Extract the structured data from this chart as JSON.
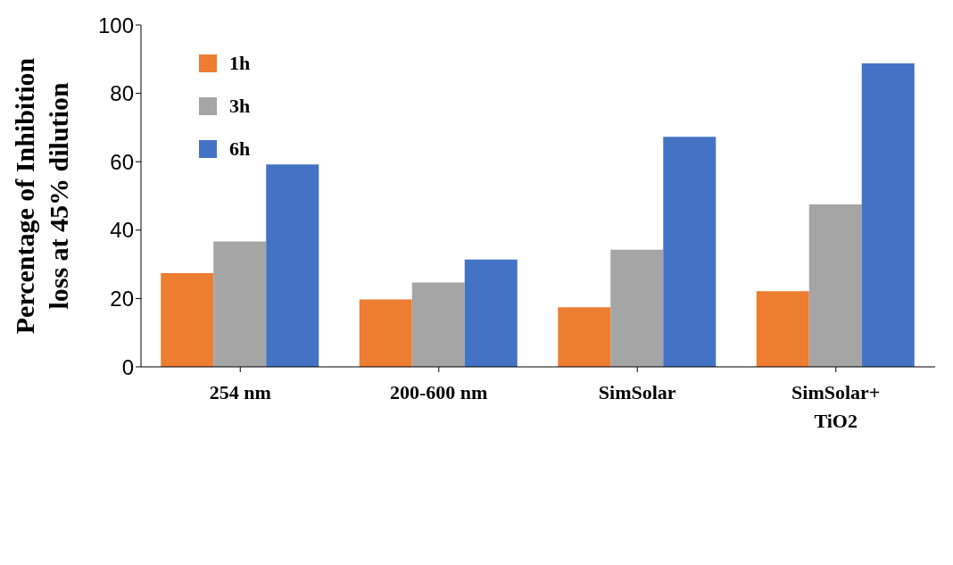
{
  "chart_data": {
    "type": "bar",
    "ylabel": "Percentage of Inhibition loss at 45% dilution",
    "categories": [
      "254 nm",
      "200-600 nm",
      "SimSolar",
      "SimSolar+ TiO2"
    ],
    "series": [
      {
        "name": "1h",
        "color": "#ed7d31",
        "values": [
          27.4,
          19.7,
          17.4,
          22.1
        ]
      },
      {
        "name": "3h",
        "color": "#a5a5a5",
        "values": [
          36.7,
          24.7,
          34.3,
          47.5
        ]
      },
      {
        "name": "6h",
        "color": "#4472c4",
        "values": [
          59.2,
          31.4,
          67.3,
          88.8
        ]
      }
    ],
    "ylim": [
      0,
      100
    ],
    "yticks": [
      0,
      20,
      40,
      60,
      80,
      100
    ],
    "grid": false,
    "legend": "top left"
  }
}
